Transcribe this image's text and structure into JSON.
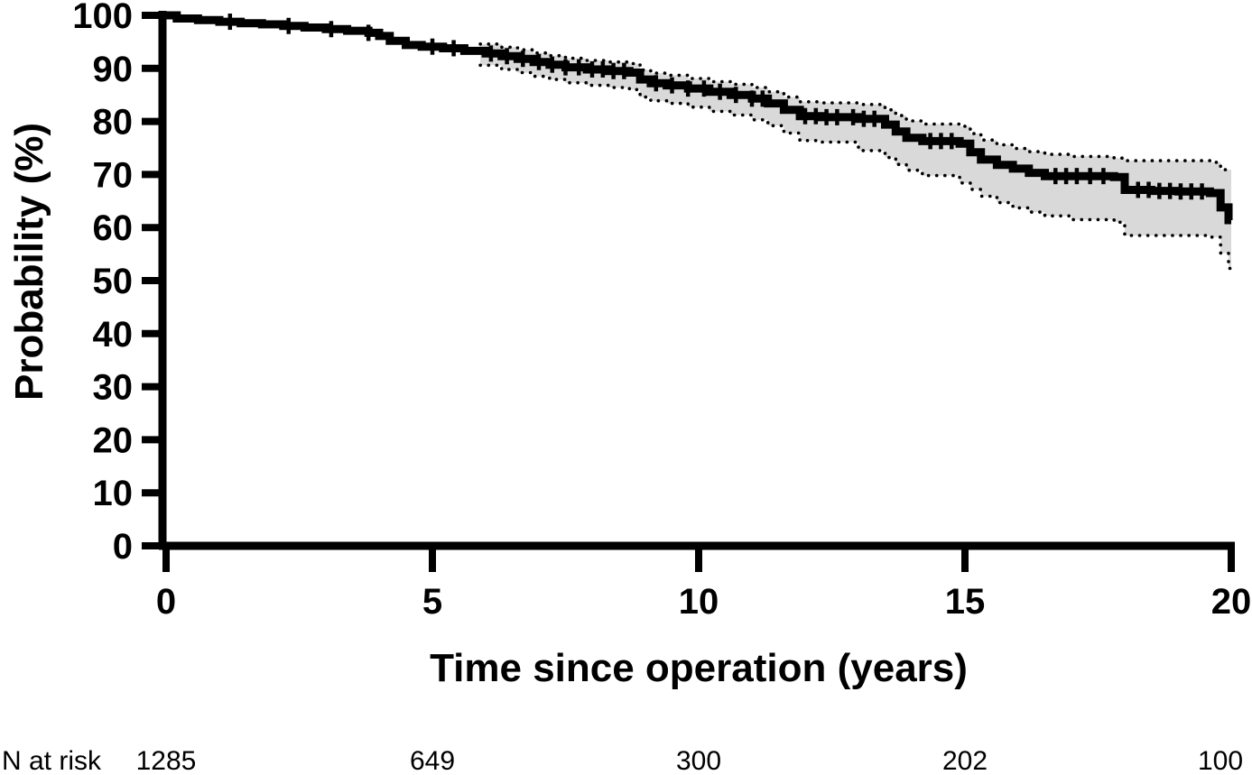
{
  "chart_data": {
    "type": "line",
    "subtype": "kaplan-meier-step-curve-with-confidence-band",
    "xlabel": "Time since operation (years)",
    "ylabel": "Probability (%)",
    "xlim": [
      0,
      20
    ],
    "ylim": [
      0,
      100
    ],
    "xticks": [
      0,
      5,
      10,
      15,
      20
    ],
    "yticks": [
      0,
      10,
      20,
      30,
      40,
      50,
      60,
      70,
      80,
      90,
      100
    ],
    "grid": false,
    "legend": false,
    "colors": {
      "curve": "#000000",
      "ci_fill": "#d9d9d9",
      "ci_line": "#000000",
      "axis": "#000000",
      "text": "#000000"
    },
    "series": [
      {
        "name": "survival-probability",
        "type": "step",
        "points": [
          [
            0,
            100
          ],
          [
            0.2,
            99.4
          ],
          [
            0.6,
            99.1
          ],
          [
            1.0,
            98.8
          ],
          [
            1.4,
            98.5
          ],
          [
            1.8,
            98.3
          ],
          [
            2.2,
            98.0
          ],
          [
            2.6,
            97.7
          ],
          [
            3.0,
            97.4
          ],
          [
            3.4,
            97.1
          ],
          [
            3.8,
            96.7
          ],
          [
            4.0,
            96.1
          ],
          [
            4.2,
            95.2
          ],
          [
            4.5,
            94.4
          ],
          [
            4.8,
            94.1
          ],
          [
            5.2,
            93.8
          ],
          [
            5.6,
            93.3
          ],
          [
            6.0,
            92.8
          ],
          [
            6.3,
            92.3
          ],
          [
            6.6,
            91.8
          ],
          [
            6.9,
            91.2
          ],
          [
            7.2,
            90.7
          ],
          [
            7.5,
            90.2
          ],
          [
            7.9,
            89.8
          ],
          [
            8.3,
            89.5
          ],
          [
            8.7,
            89.2
          ],
          [
            8.9,
            87.9
          ],
          [
            9.1,
            87.2
          ],
          [
            9.4,
            86.8
          ],
          [
            9.8,
            86.2
          ],
          [
            10.2,
            85.6
          ],
          [
            10.6,
            85.0
          ],
          [
            11.0,
            84.3
          ],
          [
            11.3,
            83.4
          ],
          [
            11.6,
            82.2
          ],
          [
            11.9,
            81.0
          ],
          [
            12.3,
            80.8
          ],
          [
            13.0,
            80.5
          ],
          [
            13.5,
            79.4
          ],
          [
            13.7,
            78.1
          ],
          [
            13.9,
            76.9
          ],
          [
            14.2,
            76.3
          ],
          [
            14.9,
            75.8
          ],
          [
            15.1,
            74.2
          ],
          [
            15.3,
            72.8
          ],
          [
            15.6,
            71.8
          ],
          [
            15.9,
            71.1
          ],
          [
            16.2,
            70.3
          ],
          [
            16.5,
            69.7
          ],
          [
            17.8,
            69.5
          ],
          [
            18.0,
            67.1
          ],
          [
            18.5,
            66.9
          ],
          [
            19.0,
            66.8
          ],
          [
            19.6,
            66.5
          ],
          [
            19.8,
            63.8
          ],
          [
            19.95,
            61.4
          ]
        ]
      }
    ],
    "ci_band": {
      "upper": [
        [
          5.9,
          94.6
        ],
        [
          6.3,
          94.0
        ],
        [
          6.6,
          93.5
        ],
        [
          6.9,
          92.9
        ],
        [
          7.2,
          92.4
        ],
        [
          7.5,
          91.9
        ],
        [
          7.9,
          91.5
        ],
        [
          8.3,
          91.2
        ],
        [
          8.7,
          90.9
        ],
        [
          8.9,
          89.7
        ],
        [
          9.1,
          89.1
        ],
        [
          9.4,
          88.7
        ],
        [
          9.8,
          88.1
        ],
        [
          10.2,
          87.5
        ],
        [
          10.6,
          87.0
        ],
        [
          11.0,
          86.4
        ],
        [
          11.3,
          85.6
        ],
        [
          11.6,
          84.6
        ],
        [
          11.9,
          83.7
        ],
        [
          12.3,
          83.5
        ],
        [
          13.0,
          83.2
        ],
        [
          13.5,
          82.2
        ],
        [
          13.7,
          81.1
        ],
        [
          13.9,
          80.1
        ],
        [
          14.2,
          79.5
        ],
        [
          14.9,
          79.1
        ],
        [
          15.1,
          77.7
        ],
        [
          15.3,
          76.5
        ],
        [
          15.6,
          75.6
        ],
        [
          15.9,
          74.9
        ],
        [
          16.2,
          74.3
        ],
        [
          16.5,
          73.8
        ],
        [
          17.0,
          73.4
        ],
        [
          17.8,
          73.1
        ],
        [
          18.0,
          72.6
        ],
        [
          19.6,
          72.3
        ],
        [
          19.8,
          70.9
        ]
      ],
      "lower": [
        [
          5.9,
          90.6
        ],
        [
          6.3,
          89.8
        ],
        [
          6.6,
          89.2
        ],
        [
          6.9,
          88.5
        ],
        [
          7.2,
          87.9
        ],
        [
          7.5,
          87.3
        ],
        [
          7.9,
          86.8
        ],
        [
          8.3,
          86.4
        ],
        [
          8.7,
          86.0
        ],
        [
          8.9,
          84.6
        ],
        [
          9.1,
          83.9
        ],
        [
          9.4,
          83.4
        ],
        [
          9.8,
          82.7
        ],
        [
          10.2,
          81.9
        ],
        [
          10.6,
          81.2
        ],
        [
          11.0,
          80.3
        ],
        [
          11.3,
          79.2
        ],
        [
          11.6,
          77.8
        ],
        [
          11.9,
          76.4
        ],
        [
          12.3,
          76.1
        ],
        [
          13.0,
          74.5
        ],
        [
          13.5,
          73.2
        ],
        [
          13.7,
          71.9
        ],
        [
          13.9,
          70.8
        ],
        [
          14.2,
          69.8
        ],
        [
          14.9,
          68.4
        ],
        [
          15.1,
          67.2
        ],
        [
          15.3,
          65.9
        ],
        [
          15.6,
          64.7
        ],
        [
          15.9,
          63.7
        ],
        [
          16.2,
          62.9
        ],
        [
          16.5,
          62.2
        ],
        [
          17.0,
          61.5
        ],
        [
          17.8,
          61.0
        ],
        [
          18.0,
          58.5
        ],
        [
          19.6,
          58.2
        ],
        [
          19.8,
          55.2
        ],
        [
          19.95,
          52.3
        ]
      ]
    },
    "censor_times": [
      1.2,
      2.3,
      3.1,
      3.8,
      5.0,
      5.4,
      6.1,
      6.4,
      6.7,
      7.0,
      7.25,
      7.5,
      7.75,
      8.0,
      8.2,
      8.4,
      8.6,
      9.2,
      9.5,
      9.8,
      10.1,
      10.4,
      10.7,
      11.0,
      11.2,
      12.0,
      12.2,
      12.4,
      12.6,
      12.9,
      13.1,
      13.3,
      14.35,
      14.55,
      14.75,
      16.7,
      16.9,
      17.1,
      17.35,
      17.6,
      18.25,
      18.45,
      18.65,
      18.85,
      19.05,
      19.25,
      19.45
    ],
    "n_at_risk": {
      "label": "N at risk",
      "times": [
        0,
        5,
        10,
        15,
        20
      ],
      "values": [
        1285,
        649,
        300,
        202,
        100
      ]
    }
  }
}
